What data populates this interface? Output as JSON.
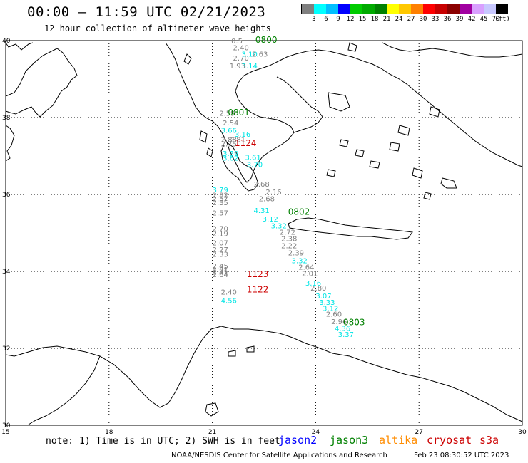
{
  "header": {
    "title": "00:00 – 11:59 UTC 02/21/2023",
    "subtitle": "12 hour collection of altimeter wave heights"
  },
  "legend": {
    "colors": [
      "#808080",
      "#00ffff",
      "#00bfff",
      "#0000ff",
      "#00cc00",
      "#00aa00",
      "#008000",
      "#ffff00",
      "#ffc800",
      "#ff8000",
      "#ff0000",
      "#c80000",
      "#8b0000",
      "#a000a0",
      "#d9a0ff",
      "#c8c8ff",
      "#000000"
    ],
    "labels": [
      "3",
      "6",
      "9",
      "12",
      "15",
      "18",
      "21",
      "24",
      "27",
      "30",
      "33",
      "36",
      "39",
      "42",
      "45",
      "70",
      "(ft)"
    ]
  },
  "axes": {
    "lat_labels": [
      "40",
      "38",
      "36",
      "34",
      "32",
      "30"
    ],
    "lon_labels": [
      "15",
      "18",
      "21",
      "24",
      "27",
      "30"
    ]
  },
  "tracks": [
    {
      "time": "0800",
      "color": "#008000",
      "points": [
        {
          "lon": 21.55,
          "lat": 39.93,
          "swh": "0.5"
        },
        {
          "lon": 21.6,
          "lat": 39.75,
          "swh": "2.40"
        },
        {
          "lon": 21.85,
          "lat": 39.58,
          "swh": "3.10"
        },
        {
          "lon": 22.15,
          "lat": 39.58,
          "swh": "2.63"
        },
        {
          "lon": 21.6,
          "lat": 39.48,
          "swh": "2.70"
        },
        {
          "lon": 21.5,
          "lat": 39.28,
          "swh": "1.93"
        },
        {
          "lon": 21.85,
          "lat": 39.28,
          "swh": "3.14"
        }
      ]
    },
    {
      "time": "0801",
      "color": "#008000",
      "points": [
        {
          "lon": 21.2,
          "lat": 38.05,
          "swh": "2.59"
        },
        {
          "lon": 21.3,
          "lat": 37.8,
          "swh": "2.54"
        },
        {
          "lon": 21.25,
          "lat": 37.6,
          "swh": "3.66"
        },
        {
          "lon": 21.65,
          "lat": 37.5,
          "swh": "3.16"
        },
        {
          "lon": 21.25,
          "lat": 37.36,
          "swh": "2.88"
        },
        {
          "lon": 21.5,
          "lat": 37.36,
          "swh": "2.81"
        },
        {
          "lon": 21.25,
          "lat": 37.25,
          "swh": "2.75"
        },
        {
          "lon": 21.3,
          "lat": 37.0,
          "swh": "3.39"
        },
        {
          "lon": 21.3,
          "lat": 36.88,
          "swh": "3.62"
        },
        {
          "lon": 21.95,
          "lat": 36.9,
          "swh": "3.61"
        },
        {
          "lon": 22.0,
          "lat": 36.71,
          "swh": "3.70"
        }
      ]
    },
    {
      "time": "0802",
      "color": "#008000",
      "points": [
        {
          "lon": 21.0,
          "lat": 36.06,
          "swh": "3.79"
        },
        {
          "lon": 21.0,
          "lat": 35.92,
          "swh": "2.82"
        },
        {
          "lon": 21.0,
          "lat": 35.82,
          "swh": "2.57"
        },
        {
          "lon": 21.0,
          "lat": 35.72,
          "swh": "2.35"
        },
        {
          "lon": 21.0,
          "lat": 35.45,
          "swh": "2.57"
        },
        {
          "lon": 21.0,
          "lat": 35.05,
          "swh": "2.70"
        },
        {
          "lon": 21.0,
          "lat": 34.92,
          "swh": "2.19"
        },
        {
          "lon": 21.0,
          "lat": 34.68,
          "swh": "2.07"
        },
        {
          "lon": 21.0,
          "lat": 34.5,
          "swh": "2.27"
        },
        {
          "lon": 21.0,
          "lat": 34.38,
          "swh": "2.33"
        },
        {
          "lon": 21.0,
          "lat": 34.07,
          "swh": "2.45"
        },
        {
          "lon": 21.0,
          "lat": 33.98,
          "swh": "2.61"
        },
        {
          "lon": 21.0,
          "lat": 33.92,
          "swh": "2.41"
        },
        {
          "lon": 21.0,
          "lat": 33.85,
          "swh": "2.64"
        },
        {
          "lon": 21.25,
          "lat": 33.4,
          "swh": "2.40"
        },
        {
          "lon": 21.25,
          "lat": 33.18,
          "swh": "4.56"
        }
      ]
    },
    {
      "time": "0803",
      "color": "#008000",
      "points": [
        {
          "lon": 22.2,
          "lat": 36.2,
          "swh": "2.68"
        },
        {
          "lon": 22.55,
          "lat": 36.0,
          "swh": "2.16"
        },
        {
          "lon": 22.35,
          "lat": 35.82,
          "swh": "2.68"
        },
        {
          "lon": 22.2,
          "lat": 35.52,
          "swh": "4.31"
        },
        {
          "lon": 22.45,
          "lat": 35.3,
          "swh": "3.12"
        },
        {
          "lon": 22.7,
          "lat": 35.12,
          "swh": "3.32"
        },
        {
          "lon": 22.95,
          "lat": 34.95,
          "swh": "2.72"
        },
        {
          "lon": 23.0,
          "lat": 34.79,
          "swh": "2.38"
        },
        {
          "lon": 23.0,
          "lat": 34.6,
          "swh": "2.22"
        },
        {
          "lon": 23.2,
          "lat": 34.42,
          "swh": "2.39"
        },
        {
          "lon": 23.3,
          "lat": 34.21,
          "swh": "3.32"
        },
        {
          "lon": 23.5,
          "lat": 34.05,
          "swh": "2.64"
        },
        {
          "lon": 23.6,
          "lat": 33.88,
          "swh": "2.01"
        },
        {
          "lon": 23.7,
          "lat": 33.63,
          "swh": "3.16"
        },
        {
          "lon": 23.85,
          "lat": 33.5,
          "swh": "2.80"
        },
        {
          "lon": 24.0,
          "lat": 33.3,
          "swh": "3.07"
        },
        {
          "lon": 24.1,
          "lat": 33.13,
          "swh": "3.33"
        },
        {
          "lon": 24.2,
          "lat": 32.97,
          "swh": "3.12"
        },
        {
          "lon": 24.3,
          "lat": 32.82,
          "swh": "2.60"
        },
        {
          "lon": 24.45,
          "lat": 32.63,
          "swh": "2.96"
        },
        {
          "lon": 24.55,
          "lat": 32.45,
          "swh": "4.36"
        },
        {
          "lon": 24.65,
          "lat": 32.3,
          "swh": "3.37"
        }
      ]
    },
    {
      "time": "1124",
      "color": "#cc0000",
      "points": []
    },
    {
      "time": "1123",
      "color": "#cc0000",
      "points": []
    },
    {
      "time": "1122",
      "color": "#cc0000",
      "points": []
    }
  ],
  "time_labels": [
    {
      "text": "0800",
      "color": "#008000",
      "lon": 22.25,
      "lat": 39.94
    },
    {
      "text": "0801",
      "color": "#008000",
      "lon": 21.45,
      "lat": 38.06
    },
    {
      "text": "0802",
      "color": "#008000",
      "lon": 23.2,
      "lat": 35.47
    },
    {
      "text": "0803",
      "color": "#008000",
      "lon": 24.8,
      "lat": 32.6
    },
    {
      "text": "1124",
      "color": "#cc0000",
      "lon": 21.65,
      "lat": 37.26
    },
    {
      "text": "1123",
      "color": "#cc0000",
      "lon": 22.0,
      "lat": 33.85
    },
    {
      "text": "1122",
      "color": "#cc0000",
      "lon": 22.0,
      "lat": 33.45
    }
  ],
  "footer": {
    "note": "note: 1) Time is in UTC; 2) SWH is in feet",
    "satellites": [
      {
        "name": "jason2",
        "color": "#0000ff"
      },
      {
        "name": "jason3",
        "color": "#008000"
      },
      {
        "name": "altika",
        "color": "#ff8c00"
      },
      {
        "name": "cryosat",
        "color": "#cc0000"
      },
      {
        "name": "s3a",
        "color": "#cc0000"
      }
    ],
    "credit": "NOAA/NESDIS Center for Satellite Applications and Research",
    "timestamp": "Feb 23 08:30:52 UTC 2023"
  }
}
